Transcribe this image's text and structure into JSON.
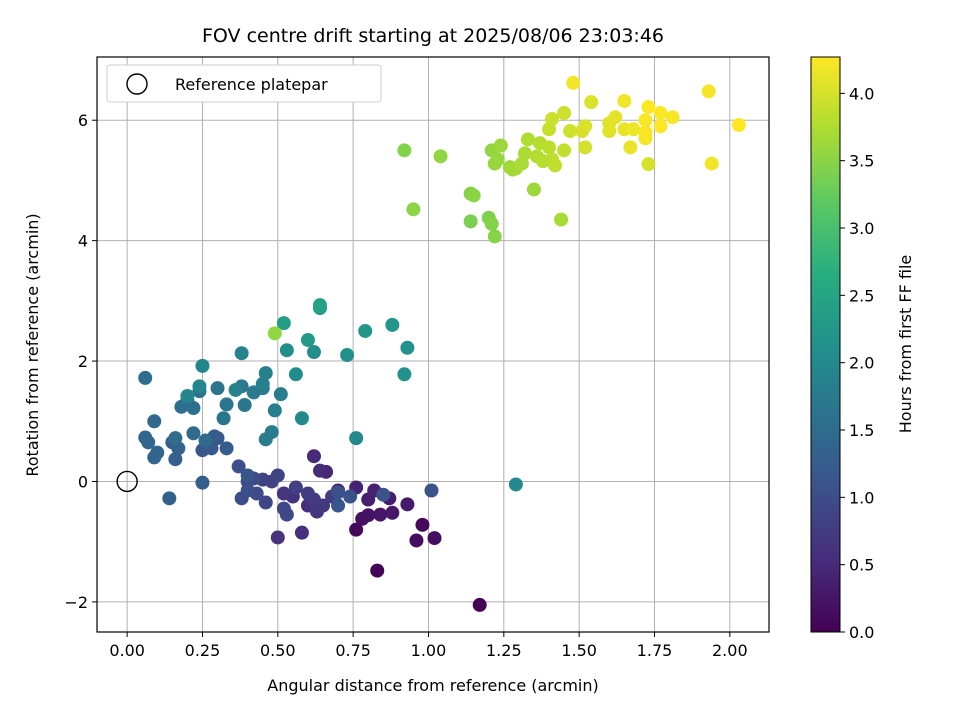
{
  "chart_data": {
    "type": "scatter",
    "title": "FOV centre drift starting at 2025/08/06 23:03:46",
    "xlabel": "Angular distance from reference (arcmin)",
    "ylabel": "Rotation from reference (arcmin)",
    "xlim": [
      -0.1,
      2.13
    ],
    "ylim": [
      -2.5,
      7.05
    ],
    "x_ticks": [
      0.0,
      0.25,
      0.5,
      0.75,
      1.0,
      1.25,
      1.5,
      1.75,
      2.0
    ],
    "x_tick_labels": [
      "0.00",
      "0.25",
      "0.50",
      "0.75",
      "1.00",
      "1.25",
      "1.50",
      "1.75",
      "2.00"
    ],
    "y_ticks": [
      -2,
      0,
      2,
      4,
      6
    ],
    "y_tick_labels": [
      "−2",
      "0",
      "2",
      "4",
      "6"
    ],
    "grid": true,
    "legend": {
      "placement": "top-left",
      "entries": [
        {
          "label": "Reference platepar",
          "marker": "open-circle"
        }
      ]
    },
    "reference_point": {
      "x": 0.0,
      "y": 0.0
    },
    "colorbar": {
      "label": "Hours from first FF file",
      "colormap": "viridis",
      "range": [
        0.0,
        4.27
      ],
      "ticks": [
        0.0,
        0.5,
        1.0,
        1.5,
        2.0,
        2.5,
        3.0,
        3.5,
        4.0
      ],
      "tick_labels": [
        "0.0",
        "0.5",
        "1.0",
        "1.5",
        "2.0",
        "2.5",
        "3.0",
        "3.5",
        "4.0"
      ]
    },
    "points": [
      [
        1.17,
        -2.05,
        0.02
      ],
      [
        0.83,
        -1.48,
        0.05
      ],
      [
        0.76,
        -0.8,
        0.08
      ],
      [
        0.98,
        -0.72,
        0.1
      ],
      [
        0.96,
        -0.98,
        0.12
      ],
      [
        1.02,
        -0.94,
        0.14
      ],
      [
        0.78,
        -0.62,
        0.18
      ],
      [
        0.8,
        -0.56,
        0.22
      ],
      [
        0.84,
        -0.55,
        0.25
      ],
      [
        0.88,
        -0.52,
        0.28
      ],
      [
        0.93,
        -0.38,
        0.3
      ],
      [
        0.87,
        -0.28,
        0.33
      ],
      [
        0.8,
        -0.3,
        0.36
      ],
      [
        0.82,
        -0.15,
        0.4
      ],
      [
        0.76,
        -0.1,
        0.42
      ],
      [
        0.7,
        -0.15,
        0.45
      ],
      [
        0.66,
        0.16,
        0.47
      ],
      [
        0.62,
        0.42,
        0.5
      ],
      [
        0.64,
        0.18,
        0.52
      ],
      [
        0.6,
        -0.4,
        0.55
      ],
      [
        0.58,
        -0.85,
        0.57
      ],
      [
        0.5,
        -0.93,
        0.6
      ],
      [
        0.55,
        -0.25,
        0.62
      ],
      [
        0.52,
        -0.2,
        0.65
      ],
      [
        0.63,
        -0.5,
        0.67
      ],
      [
        0.65,
        -0.4,
        0.7
      ],
      [
        0.62,
        -0.3,
        0.72
      ],
      [
        0.68,
        -0.25,
        0.75
      ],
      [
        0.6,
        -0.2,
        0.77
      ],
      [
        0.56,
        -0.1,
        0.8
      ],
      [
        0.48,
        0.0,
        0.82
      ],
      [
        0.45,
        0.03,
        0.84
      ],
      [
        0.5,
        0.1,
        0.86
      ],
      [
        0.46,
        -0.35,
        0.88
      ],
      [
        0.52,
        -0.45,
        0.9
      ],
      [
        0.53,
        -0.55,
        0.92
      ],
      [
        0.4,
        0.0,
        0.94
      ],
      [
        0.42,
        0.05,
        0.96
      ],
      [
        0.43,
        -0.2,
        0.98
      ],
      [
        0.38,
        -0.28,
        1.0
      ],
      [
        0.4,
        -0.15,
        1.02
      ],
      [
        0.37,
        0.25,
        1.04
      ],
      [
        0.7,
        -0.18,
        1.05
      ],
      [
        0.74,
        -0.25,
        1.06
      ],
      [
        0.85,
        -0.22,
        1.08
      ],
      [
        1.01,
        -0.15,
        1.1
      ],
      [
        0.7,
        -0.4,
        1.12
      ],
      [
        0.4,
        0.1,
        1.14
      ],
      [
        0.25,
        0.52,
        1.16
      ],
      [
        0.28,
        0.55,
        1.18
      ],
      [
        0.3,
        0.72,
        1.2
      ],
      [
        0.33,
        0.55,
        1.22
      ],
      [
        0.29,
        0.75,
        1.24
      ],
      [
        0.25,
        -0.02,
        1.26
      ],
      [
        0.16,
        0.37,
        1.28
      ],
      [
        0.15,
        0.65,
        1.3
      ],
      [
        0.14,
        -0.28,
        1.32
      ],
      [
        0.17,
        0.55,
        1.34
      ],
      [
        0.09,
        0.4,
        1.36
      ],
      [
        0.1,
        0.48,
        1.38
      ],
      [
        0.07,
        0.65,
        1.4
      ],
      [
        0.06,
        0.73,
        1.42
      ],
      [
        0.09,
        1.0,
        1.44
      ],
      [
        0.22,
        0.8,
        1.46
      ],
      [
        0.26,
        0.68,
        1.48
      ],
      [
        0.16,
        0.72,
        1.5
      ],
      [
        0.06,
        1.72,
        1.52
      ],
      [
        0.18,
        1.24,
        1.54
      ],
      [
        0.22,
        1.22,
        1.56
      ],
      [
        0.2,
        1.35,
        1.58
      ],
      [
        0.24,
        1.5,
        1.6
      ],
      [
        0.3,
        1.55,
        1.62
      ],
      [
        0.32,
        1.05,
        1.64
      ],
      [
        0.33,
        1.28,
        1.66
      ],
      [
        0.39,
        1.27,
        1.68
      ],
      [
        0.38,
        1.58,
        1.7
      ],
      [
        0.42,
        1.48,
        1.72
      ],
      [
        0.45,
        1.55,
        1.74
      ],
      [
        0.46,
        0.7,
        1.76
      ],
      [
        0.48,
        0.82,
        1.78
      ],
      [
        0.49,
        1.18,
        1.8
      ],
      [
        0.51,
        1.45,
        1.82
      ],
      [
        0.45,
        1.62,
        1.84
      ],
      [
        0.46,
        1.8,
        1.86
      ],
      [
        0.36,
        1.52,
        1.88
      ],
      [
        0.38,
        2.13,
        1.9
      ],
      [
        0.25,
        1.92,
        1.92
      ],
      [
        0.24,
        1.58,
        1.94
      ],
      [
        0.2,
        1.42,
        1.96
      ],
      [
        1.29,
        -0.05,
        1.98
      ],
      [
        0.76,
        0.72,
        2.0
      ],
      [
        0.58,
        1.05,
        2.02
      ],
      [
        0.56,
        1.78,
        2.05
      ],
      [
        0.62,
        2.15,
        2.08
      ],
      [
        0.53,
        2.18,
        2.1
      ],
      [
        0.73,
        2.1,
        2.12
      ],
      [
        0.92,
        1.78,
        2.15
      ],
      [
        0.93,
        2.22,
        2.18
      ],
      [
        0.88,
        2.6,
        2.22
      ],
      [
        0.79,
        2.5,
        2.26
      ],
      [
        0.6,
        2.35,
        2.3
      ],
      [
        0.52,
        2.63,
        2.35
      ],
      [
        0.64,
        2.88,
        2.4
      ],
      [
        0.64,
        2.93,
        2.45
      ],
      [
        0.49,
        2.46,
        3.55
      ],
      [
        0.92,
        5.5,
        3.45
      ],
      [
        0.95,
        4.52,
        3.5
      ],
      [
        1.04,
        5.4,
        3.55
      ],
      [
        1.14,
        4.32,
        3.4
      ],
      [
        1.14,
        4.78,
        3.45
      ],
      [
        1.15,
        4.75,
        3.5
      ],
      [
        1.2,
        4.38,
        3.42
      ],
      [
        1.21,
        4.28,
        3.46
      ],
      [
        1.22,
        4.07,
        3.48
      ],
      [
        1.21,
        5.5,
        3.55
      ],
      [
        1.23,
        5.35,
        3.58
      ],
      [
        1.22,
        5.28,
        3.6
      ],
      [
        1.24,
        5.58,
        3.62
      ],
      [
        1.27,
        5.22,
        3.64
      ],
      [
        1.28,
        5.18,
        3.66
      ],
      [
        1.29,
        5.2,
        3.68
      ],
      [
        1.31,
        5.28,
        3.7
      ],
      [
        1.32,
        5.45,
        3.72
      ],
      [
        1.33,
        5.68,
        3.74
      ],
      [
        1.35,
        4.85,
        3.62
      ],
      [
        1.36,
        5.4,
        3.76
      ],
      [
        1.37,
        5.62,
        3.78
      ],
      [
        1.38,
        5.32,
        3.8
      ],
      [
        1.4,
        5.55,
        3.82
      ],
      [
        1.41,
        5.35,
        3.84
      ],
      [
        1.42,
        5.25,
        3.86
      ],
      [
        1.44,
        4.35,
        3.7
      ],
      [
        1.45,
        5.5,
        3.88
      ],
      [
        1.4,
        5.85,
        3.9
      ],
      [
        1.41,
        6.02,
        3.92
      ],
      [
        1.45,
        6.12,
        3.94
      ],
      [
        1.47,
        5.82,
        3.96
      ],
      [
        1.52,
        5.55,
        3.98
      ],
      [
        1.48,
        6.62,
        4.2
      ],
      [
        1.51,
        5.82,
        4.0
      ],
      [
        1.52,
        5.9,
        4.02
      ],
      [
        1.54,
        6.3,
        4.04
      ],
      [
        1.6,
        5.95,
        4.06
      ],
      [
        1.6,
        5.82,
        4.08
      ],
      [
        1.62,
        6.05,
        4.1
      ],
      [
        1.65,
        5.85,
        4.12
      ],
      [
        1.67,
        5.55,
        4.14
      ],
      [
        1.68,
        5.85,
        4.16
      ],
      [
        1.65,
        6.32,
        4.18
      ],
      [
        1.72,
        5.7,
        4.2
      ],
      [
        1.72,
        5.8,
        4.22
      ],
      [
        1.72,
        6.0,
        4.24
      ],
      [
        1.73,
        5.27,
        4.0
      ],
      [
        1.73,
        6.22,
        4.26
      ],
      [
        1.77,
        5.9,
        4.27
      ],
      [
        1.77,
        6.12,
        4.25
      ],
      [
        1.81,
        6.05,
        4.23
      ],
      [
        1.93,
        6.48,
        4.21
      ],
      [
        1.94,
        5.28,
        4.19
      ],
      [
        2.03,
        5.92,
        4.27
      ]
    ]
  }
}
